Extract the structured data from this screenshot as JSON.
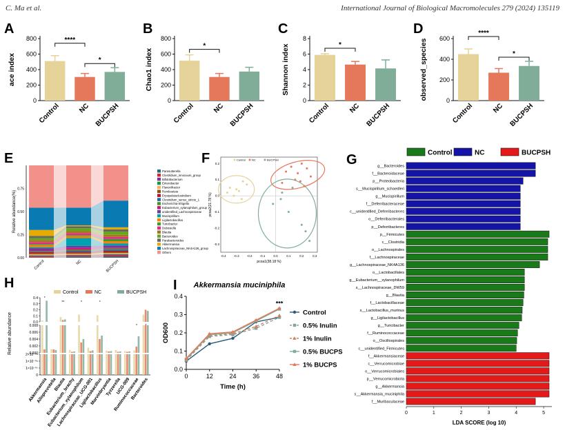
{
  "header": {
    "left": "C. Ma et al.",
    "right": "International Journal of Biological Macromolecules 279 (2024) 135119"
  },
  "colors": {
    "control": "#e5d39a",
    "nc": "#e5775a",
    "bucpsh": "#7fad98",
    "g_green": "#1a7a1a",
    "g_blue": "#1414a8",
    "g_red": "#e41a1a"
  },
  "chart_data": [
    {
      "id": "A",
      "type": "bar",
      "panel_label": "A",
      "ylabel": "ace index",
      "categories": [
        "Control",
        "NC",
        "BUCPSH"
      ],
      "values": [
        510,
        305,
        370
      ],
      "errors": [
        70,
        45,
        55
      ],
      "ylim": [
        0,
        800
      ],
      "yticks": [
        0,
        200,
        400,
        600,
        800
      ],
      "sig": [
        {
          "from": 0,
          "to": 1,
          "label": "****"
        },
        {
          "from": 1,
          "to": 2,
          "label": "*"
        }
      ]
    },
    {
      "id": "B",
      "type": "bar",
      "panel_label": "B",
      "ylabel": "Chao1 index",
      "categories": [
        "Control",
        "NC",
        "BUCPSH"
      ],
      "values": [
        515,
        305,
        375
      ],
      "errors": [
        75,
        45,
        55
      ],
      "ylim": [
        0,
        800
      ],
      "yticks": [
        0,
        200,
        400,
        600,
        800
      ],
      "sig": [
        {
          "from": 0,
          "to": 1,
          "label": "*"
        }
      ]
    },
    {
      "id": "C",
      "type": "bar",
      "panel_label": "C",
      "ylabel": "Shannon index",
      "categories": [
        "Control",
        "NC",
        "BUCPSH"
      ],
      "values": [
        5.9,
        4.65,
        4.15
      ],
      "errors": [
        0.15,
        0.4,
        1.1
      ],
      "ylim": [
        0,
        8
      ],
      "yticks": [
        0,
        2,
        4,
        6,
        8
      ],
      "sig": [
        {
          "from": 0,
          "to": 1,
          "label": "*"
        }
      ]
    },
    {
      "id": "D",
      "type": "bar",
      "panel_label": "D",
      "ylabel": "observed_species",
      "categories": [
        "Control",
        "NC",
        "BUCPSH"
      ],
      "values": [
        450,
        270,
        335
      ],
      "errors": [
        50,
        40,
        45
      ],
      "ylim": [
        0,
        600
      ],
      "yticks": [
        0,
        200,
        400,
        600
      ],
      "sig": [
        {
          "from": 0,
          "to": 1,
          "label": "****"
        },
        {
          "from": 1,
          "to": 2,
          "label": "*"
        }
      ]
    },
    {
      "id": "E",
      "type": "stacked-bar",
      "panel_label": "E",
      "ylabel": "Relative abundance(%)",
      "categories": [
        "Control",
        "NC",
        "BUCPSH"
      ],
      "yticks": [
        "0.00",
        "0.25",
        "0.50",
        "0.75"
      ],
      "legend": [
        "Parasutterella",
        "Clostridium_innocuum_group",
        "Bifidobacterium",
        "Enterobacter",
        "Flavonifractor",
        "Romboutsia",
        "Erysipelatoclostridium",
        "Clostridium_sensu_stricto_1",
        "Escherichia-Shigella",
        "Eubacterium_xylanophilum_group",
        "unidentified_Lachnospiraceae",
        "Mucispirillum",
        "Ligilactobacillus",
        "Turicibacter",
        "Dubosiella",
        "Blautia",
        "Bacteroides",
        "Parabacteroides",
        "Akkermansia",
        "Lachnospiraceae_NK4A136_group",
        "Others"
      ],
      "series_colors": [
        "#1f6f7f",
        "#d62728",
        "#7b3294",
        "#1a9641",
        "#fdae61",
        "#8c510a",
        "#b2182b",
        "#2166ac",
        "#4d9221",
        "#c51b7d",
        "#6a3d9a",
        "#00a0b0",
        "#ff7f00",
        "#33a02c",
        "#e7298a",
        "#a6761d",
        "#66a61e",
        "#666666",
        "#e6ab02",
        "#0a7ab2",
        "#f2908a"
      ],
      "values": {
        "Control": [
          0.005,
          0.01,
          0.005,
          0.005,
          0.01,
          0.01,
          0.01,
          0.005,
          0.005,
          0.01,
          0.02,
          0.01,
          0.02,
          0.01,
          0.02,
          0.02,
          0.02,
          0.02,
          0.06,
          0.22,
          0.42
        ],
        "NC": [
          0.01,
          0.01,
          0.005,
          0.005,
          0.01,
          0.01,
          0.01,
          0.01,
          0.01,
          0.02,
          0.02,
          0.08,
          0.02,
          0.01,
          0.02,
          0.02,
          0.03,
          0.02,
          0.01,
          0.18,
          0.43
        ],
        "BUCPSH": [
          0.01,
          0.01,
          0.01,
          0.005,
          0.01,
          0.01,
          0.01,
          0.01,
          0.01,
          0.01,
          0.02,
          0.02,
          0.02,
          0.02,
          0.02,
          0.02,
          0.03,
          0.02,
          0.02,
          0.25,
          0.33
        ]
      }
    },
    {
      "id": "F",
      "type": "scatter",
      "panel_label": "F",
      "xlabel": "pcoa1(38.18 %)",
      "ylabel": "pcoa2(21.78 %)",
      "legend": [
        "Control",
        "NC",
        "BUCPSH"
      ],
      "xticks": [
        "-0.4",
        "-0.3",
        "-0.2",
        "-0.1",
        "0.0",
        "0.1",
        "0.2",
        "0.3"
      ],
      "yticks": [
        "0.2",
        "0.1",
        "0.0",
        "-0.1",
        "-0.2",
        "-0.3"
      ],
      "points": {
        "Control": [
          [
            -0.35,
            0.05
          ],
          [
            -0.32,
            0.0
          ],
          [
            -0.3,
            0.04
          ],
          [
            -0.28,
            0.03
          ],
          [
            -0.25,
            0.09
          ],
          [
            -0.22,
            0.07
          ],
          [
            -0.37,
            0.02
          ],
          [
            -0.26,
            -0.02
          ]
        ],
        "NC": [
          [
            0.08,
            0.15
          ],
          [
            0.12,
            0.18
          ],
          [
            0.17,
            0.14
          ],
          [
            0.2,
            0.2
          ],
          [
            0.24,
            0.17
          ],
          [
            0.27,
            0.12
          ],
          [
            0.15,
            0.1
          ],
          [
            0.22,
            0.06
          ],
          [
            0.05,
            0.08
          ],
          [
            0.19,
            0.09
          ]
        ],
        "BUCPSH": [
          [
            -0.02,
            -0.05
          ],
          [
            0.04,
            -0.02
          ],
          [
            0.1,
            -0.1
          ],
          [
            0.2,
            -0.18
          ],
          [
            0.23,
            -0.22
          ],
          [
            0.26,
            -0.28
          ],
          [
            0.13,
            0.05
          ],
          [
            0.05,
            0.02
          ]
        ]
      },
      "xlim": [
        -0.42,
        0.32
      ],
      "ylim": [
        -0.35,
        0.24
      ]
    },
    {
      "id": "G",
      "type": "lefse-bar",
      "panel_label": "G",
      "xlabel": "LDA SCORE (log 10)",
      "xticks": [
        0,
        1,
        2,
        3,
        4,
        5
      ],
      "xlim": [
        0,
        5.3
      ],
      "legend": [
        {
          "name": "Control",
          "color": "#1a7a1a"
        },
        {
          "name": "NC",
          "color": "#1414a8"
        },
        {
          "name": "BUCPSH",
          "color": "#e41a1a"
        }
      ],
      "bars": [
        {
          "label": "g__Bacteroides",
          "value": 4.7,
          "group": "NC"
        },
        {
          "label": "f__Bacteroidaceae",
          "value": 4.7,
          "group": "NC"
        },
        {
          "label": "p__Proteobacteria",
          "value": 4.25,
          "group": "NC"
        },
        {
          "label": "s__Mucispirillum_schaedleri",
          "value": 4.15,
          "group": "NC"
        },
        {
          "label": "g__Mucispirillum",
          "value": 4.15,
          "group": "NC"
        },
        {
          "label": "f__Deferribacteraceae",
          "value": 4.15,
          "group": "NC"
        },
        {
          "label": "c__unidentified_Deferribacteres",
          "value": 4.15,
          "group": "NC"
        },
        {
          "label": "o__Deferribacterales",
          "value": 4.15,
          "group": "NC"
        },
        {
          "label": "p__Deferribacteres",
          "value": 4.15,
          "group": "NC"
        },
        {
          "label": "p__Firmicutes",
          "value": 5.2,
          "group": "Control"
        },
        {
          "label": "c__Clostridia",
          "value": 5.15,
          "group": "Control"
        },
        {
          "label": "o__Lachnospirales",
          "value": 5.15,
          "group": "Control"
        },
        {
          "label": "f__Lachnospiraceae",
          "value": 5.15,
          "group": "Control"
        },
        {
          "label": "g__Lachnospiraceae_NK4A136",
          "value": 4.85,
          "group": "Control"
        },
        {
          "label": "o__Lactobacillales",
          "value": 4.3,
          "group": "Control"
        },
        {
          "label": "g__Eubacterium__xylanophilum",
          "value": 4.3,
          "group": "Control"
        },
        {
          "label": "s__Lachnospiraceae_DW59",
          "value": 4.3,
          "group": "Control"
        },
        {
          "label": "g__Blautia",
          "value": 4.28,
          "group": "Control"
        },
        {
          "label": "f__Lactobacillaceae",
          "value": 4.25,
          "group": "Control"
        },
        {
          "label": "s__Lactobacillus_murinus",
          "value": 4.22,
          "group": "Control"
        },
        {
          "label": "g__Ligilactobacillus",
          "value": 4.2,
          "group": "Control"
        },
        {
          "label": "g__Turicibacter",
          "value": 4.1,
          "group": "Control"
        },
        {
          "label": "f__Ruminococcaceae",
          "value": 4.05,
          "group": "Control"
        },
        {
          "label": "o__Oscillospirales",
          "value": 4.02,
          "group": "Control"
        },
        {
          "label": "c__unidentified_Firmicutes",
          "value": 4.0,
          "group": "Control"
        },
        {
          "label": "f__Akkermansiaceae",
          "value": 5.2,
          "group": "BUCPSH"
        },
        {
          "label": "c__Verrucomicrobiae",
          "value": 5.2,
          "group": "BUCPSH"
        },
        {
          "label": "o__Verrucomicrobiales",
          "value": 5.2,
          "group": "BUCPSH"
        },
        {
          "label": "p__Verrucomicrobiota",
          "value": 5.2,
          "group": "BUCPSH"
        },
        {
          "label": "g__Akkermansia",
          "value": 5.2,
          "group": "BUCPSH"
        },
        {
          "label": "s__Akkermansia_muciniphila",
          "value": 5.2,
          "group": "BUCPSH"
        },
        {
          "label": "f__Muribaculaceae",
          "value": 4.7,
          "group": "BUCPSH"
        }
      ]
    },
    {
      "id": "H",
      "type": "grouped-bar",
      "panel_label": "H",
      "ylabel": "Relative abundance",
      "legend": [
        "Control",
        "NC",
        "BUCPSH"
      ],
      "categories": [
        "Akkermansia",
        "Alloprevotella",
        "Blautia",
        "Eubacterium_brachy",
        "Eubacterium_xylanophilum",
        "Lachnospiraceae_UCG-001",
        "Ligilactobacillus",
        "Marvinbryantia",
        "Tyzzerella",
        "UCG-009",
        "Ruminococcaceae",
        "Bacteroides"
      ],
      "upper_yticks": [
        "0.0",
        "0.1",
        "0.2",
        "0.3",
        "0.4"
      ],
      "middle_yticks": [
        "0.000",
        "0.002",
        "0.004",
        "0.006",
        "0.008"
      ],
      "lower_yticks": [
        "0",
        "1×10⁻⁰⁷",
        "1×10⁻⁰⁶",
        "2×10⁻⁰⁶"
      ],
      "series": [
        {
          "name": "Control",
          "values": [
            0.02,
            0.001,
            0.08,
            0.0008,
            0.12,
            0.0015,
            0.11,
            0.0006,
            0.0008,
            0.0005,
            0.0007,
            0.12
          ]
        },
        {
          "name": "NC",
          "values": [
            0.001,
            0.001,
            0.03,
            0.0003,
            0.003,
            0.0005,
            0.004,
            0.0004,
            0.0003,
            0.0003,
            0.0018,
            0.2
          ]
        },
        {
          "name": "BUCPSH",
          "values": [
            0.35,
            0.0008,
            0.04,
            0.0004,
            0.004,
            0.0007,
            0.005,
            0.0005,
            0.0004,
            0.0004,
            0.0048,
            0.18
          ]
        }
      ],
      "annotations": [
        "*",
        "**",
        "*",
        "*",
        "*",
        "*"
      ]
    },
    {
      "id": "I",
      "type": "line",
      "panel_label": "I",
      "title": "Akkermansia muciniphila",
      "xlabel": "Time (h)",
      "ylabel": "OD600",
      "x": [
        0,
        12,
        24,
        36,
        48
      ],
      "xticks": [
        0,
        12,
        24,
        36,
        48
      ],
      "yticks": [
        "0.0",
        "0.1",
        "0.2",
        "0.3",
        "0.4"
      ],
      "ylim": [
        0,
        0.4
      ],
      "series": [
        {
          "name": "Control",
          "values": [
            0.045,
            0.14,
            0.17,
            0.26,
            0.285
          ],
          "color": "#2a5a78",
          "dash": "",
          "marker": "circle"
        },
        {
          "name": "0.5% Inulin",
          "values": [
            0.05,
            0.18,
            0.19,
            0.225,
            0.285
          ],
          "color": "#8aa0a0",
          "dash": "4,3",
          "marker": "square"
        },
        {
          "name": "1% Inulin",
          "values": [
            0.05,
            0.185,
            0.195,
            0.235,
            0.295
          ],
          "color": "#d08060",
          "dash": "4,3",
          "marker": "triangle"
        },
        {
          "name": "0.5% BUCPS",
          "values": [
            0.055,
            0.19,
            0.2,
            0.265,
            0.33
          ],
          "color": "#7fad98",
          "dash": "",
          "marker": "square"
        },
        {
          "name": "1% BUCPS",
          "values": [
            0.06,
            0.195,
            0.205,
            0.27,
            0.335
          ],
          "color": "#e5775a",
          "dash": "",
          "marker": "triangle"
        }
      ],
      "sig_label": "***"
    }
  ]
}
